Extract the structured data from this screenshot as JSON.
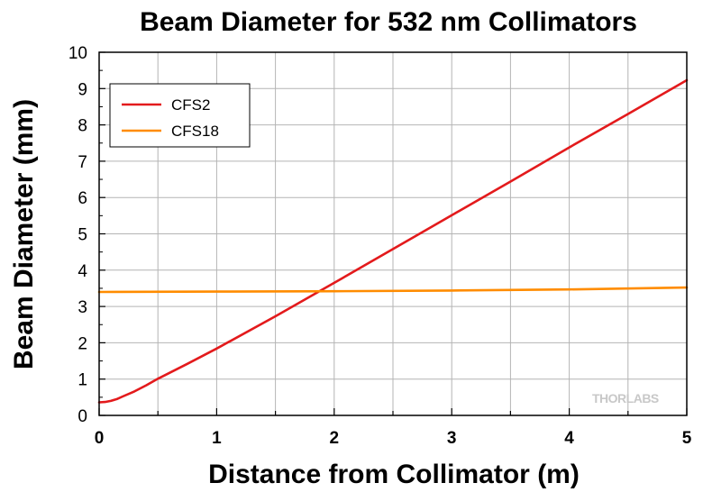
{
  "chart_data": {
    "type": "line",
    "title": "Beam Diameter for 532 nm Collimators",
    "xlabel": "Distance from Collimator (m)",
    "ylabel": "Beam Diameter (mm)",
    "xlim": [
      0,
      5
    ],
    "ylim": [
      0,
      10
    ],
    "xticks": [
      "0",
      "1",
      "2",
      "3",
      "4",
      "5"
    ],
    "yticks": [
      "0",
      "1",
      "2",
      "3",
      "4",
      "5",
      "6",
      "7",
      "8",
      "9",
      "10"
    ],
    "grid": true,
    "legend_position": "top-left",
    "watermark": "THORLABS",
    "series": [
      {
        "name": "CFS2",
        "color": "#e31a1c",
        "x": [
          0,
          0.05,
          0.1,
          0.15,
          0.2,
          0.3,
          0.4,
          0.5,
          0.75,
          1.0,
          1.5,
          2.0,
          2.5,
          3.0,
          3.5,
          4.0,
          4.5,
          5.0
        ],
        "y": [
          0.36,
          0.37,
          0.4,
          0.45,
          0.52,
          0.66,
          0.83,
          1.01,
          1.42,
          1.84,
          2.73,
          3.65,
          4.58,
          5.51,
          6.44,
          7.38,
          8.3,
          9.23
        ]
      },
      {
        "name": "CFS18",
        "color": "#ff8c00",
        "x": [
          0,
          1,
          2,
          3,
          4,
          5
        ],
        "y": [
          3.4,
          3.41,
          3.42,
          3.44,
          3.47,
          3.52
        ]
      }
    ]
  }
}
